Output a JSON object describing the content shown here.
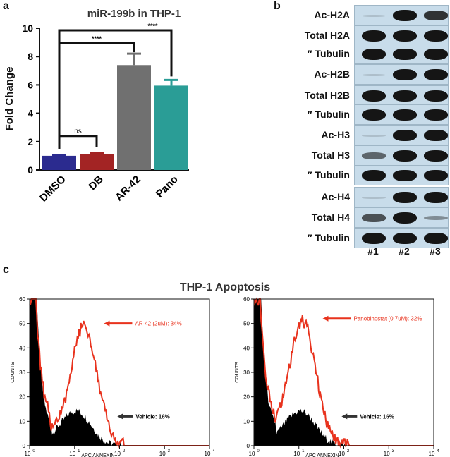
{
  "panels": {
    "a": "a",
    "b": "b",
    "c": "c"
  },
  "chart_data": [
    {
      "type": "bar",
      "title": "miR-199b in THP-1",
      "xlabel": "",
      "ylabel": "Fold Change",
      "ylim": [
        0,
        10
      ],
      "yticks": [
        "0",
        "2",
        "4",
        "6",
        "8",
        "10"
      ],
      "categories": [
        "DMSO",
        "DB",
        "AR-42",
        "Pano"
      ],
      "values": [
        1.0,
        1.1,
        7.4,
        5.95
      ],
      "errors": [
        0.05,
        0.1,
        0.8,
        0.4
      ],
      "colors": [
        "#2b2b8f",
        "#a32424",
        "#707070",
        "#2a9d96"
      ],
      "significance": [
        "ns",
        "****",
        "****"
      ]
    },
    {
      "type": "histogram",
      "title": "THP-1 Apoptosis",
      "xlabel": "APC ANNEXIN",
      "ylabel": "COUNTS",
      "xscale": "log",
      "xlim": [
        1,
        10000
      ],
      "ylim": [
        0,
        60
      ],
      "yticks": [
        "0",
        "10",
        "20",
        "30",
        "40",
        "50",
        "60"
      ],
      "xticks": [
        "10",
        "10",
        "10",
        "10",
        "10"
      ],
      "xtick_exponents": [
        "0",
        "1",
        "2",
        "3",
        "4"
      ],
      "plots": [
        {
          "treated_label": "AR-42 (2uM): 34%",
          "vehicle_label": "Vehicle: 16%",
          "treated_peak_x": 16,
          "treated_peak_count": 54
        },
        {
          "treated_label": "Panobinostat (0.7uM): 32%",
          "vehicle_label": "Vehicle: 16%",
          "treated_peak_x": 12,
          "treated_peak_count": 56
        }
      ]
    }
  ],
  "western_blot": {
    "rows": [
      {
        "label": "Ac-H2A",
        "bands": [
          0.1,
          1,
          0.85
        ]
      },
      {
        "label": "Total H2A",
        "bands": [
          1,
          1,
          1
        ]
      },
      {
        "label": "″ Tubulin",
        "bands": [
          1,
          1,
          1
        ]
      },
      {
        "label": "Ac-H2B",
        "bands": [
          0.05,
          1,
          1
        ]
      },
      {
        "label": "Total H2B",
        "bands": [
          1,
          1,
          1
        ]
      },
      {
        "label": "″ Tubulin",
        "bands": [
          1,
          1,
          1
        ]
      },
      {
        "label": "Ac-H3",
        "bands": [
          0.15,
          1,
          1
        ]
      },
      {
        "label": "Total H3",
        "bands": [
          0.6,
          1,
          1
        ]
      },
      {
        "label": "″ Tubulin",
        "bands": [
          1,
          1,
          1
        ]
      },
      {
        "label": "Ac-H4",
        "bands": [
          0.05,
          1,
          1
        ]
      },
      {
        "label": "Total H4",
        "bands": [
          0.7,
          1,
          0.4
        ]
      },
      {
        "label": "″ Tubulin",
        "bands": [
          1,
          1,
          1
        ]
      }
    ],
    "lanes": [
      "#1",
      "#2",
      "#3"
    ]
  },
  "colors": {
    "treated": "#e8321d",
    "vehicle": "#000000",
    "arrow": "#e8321d"
  }
}
